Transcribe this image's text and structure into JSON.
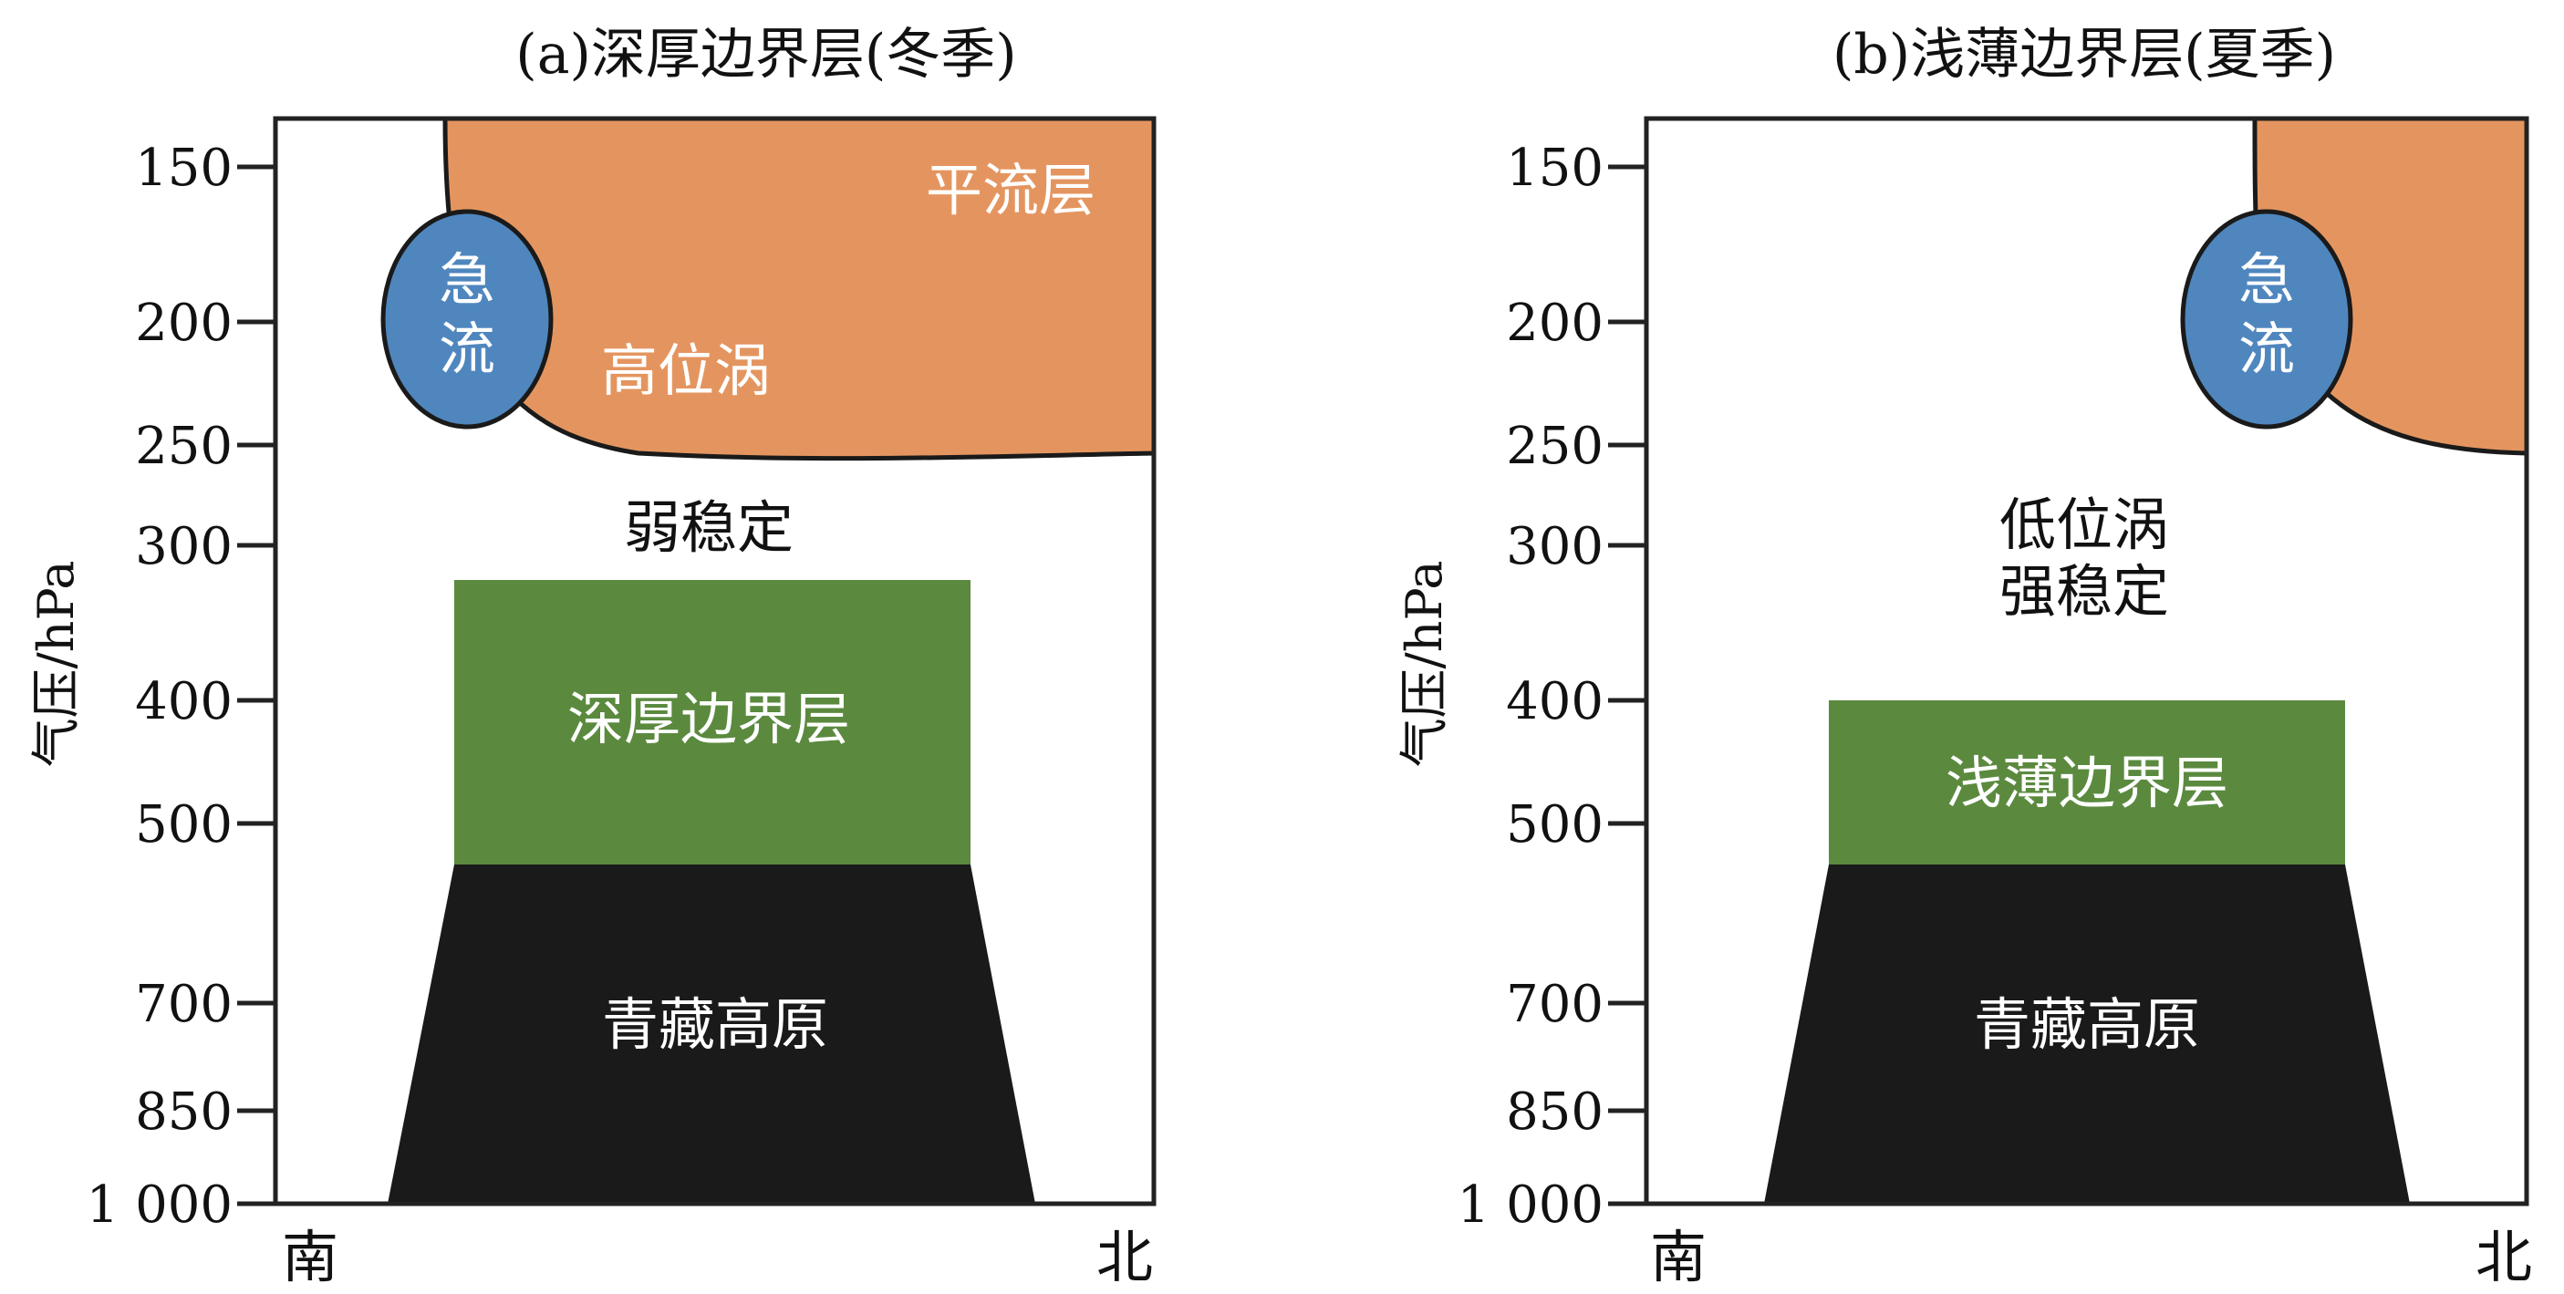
{
  "panels": [
    {
      "title": "(a)深厚边界层(冬季)",
      "ylabel": "气压/hPa",
      "yticks": [
        "150",
        "200",
        "250",
        "300",
        "400",
        "500",
        "700",
        "850",
        "1 000"
      ],
      "x_left": "南",
      "x_right": "北",
      "labels": {
        "stratosphere": "平流层",
        "jet_line1": "急",
        "jet_line2": "流",
        "vortex": "高位涡",
        "stability": "弱稳定",
        "boundary_layer": "深厚边界层",
        "plateau": "青藏高原"
      }
    },
    {
      "title": "(b)浅薄边界层(夏季)",
      "ylabel": "气压/hPa",
      "yticks": [
        "150",
        "200",
        "250",
        "300",
        "400",
        "500",
        "700",
        "850",
        "1 000"
      ],
      "x_left": "南",
      "x_right": "北",
      "labels": {
        "jet_line1": "急",
        "jet_line2": "流",
        "vortex_line1": "低位涡",
        "vortex_line2": "强稳定",
        "boundary_layer": "浅薄边界层",
        "plateau": "青藏高原"
      }
    }
  ],
  "colors": {
    "stratosphere": "#E4955F",
    "jet": "#4F86BE",
    "boundary_layer": "#5B8A3F",
    "plateau": "#1A1A1A",
    "frame": "#222222"
  }
}
